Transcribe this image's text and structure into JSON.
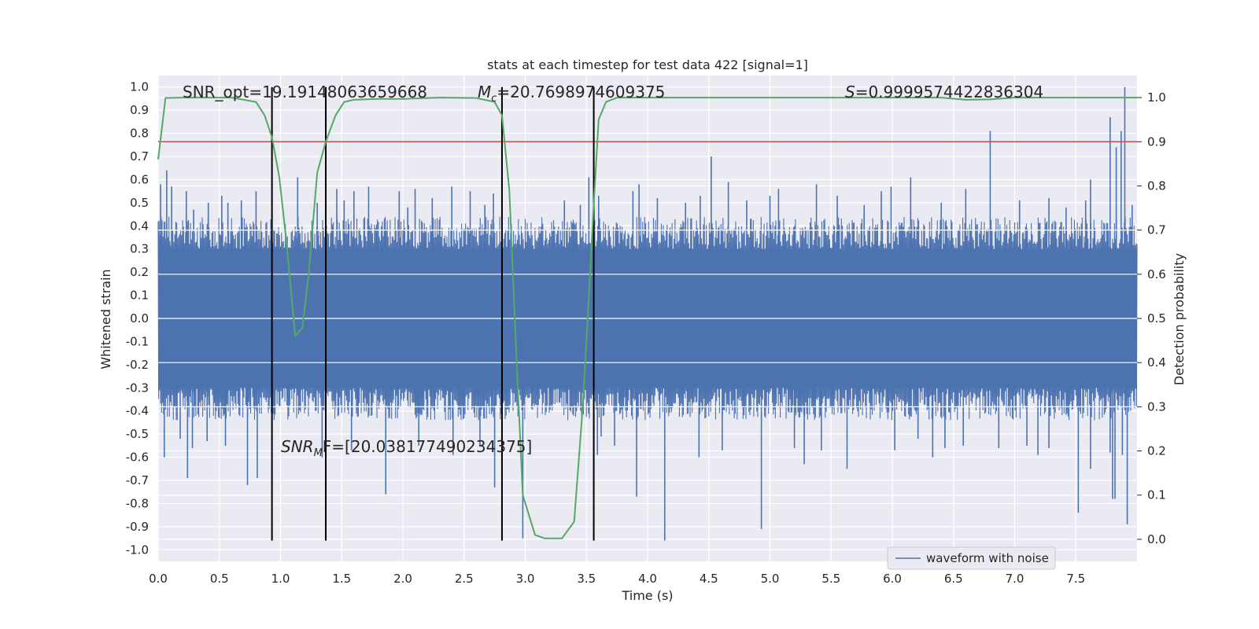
{
  "chart_data": {
    "type": "line",
    "title": "stats at each timestep for test data 422 [signal=1]",
    "xlabel": "Time (s)",
    "ylabel_left": "Whitened strain",
    "ylabel_right": "Detection probability",
    "xlim": [
      0.0,
      8.0
    ],
    "ylim_left": [
      -1.05,
      1.05
    ],
    "ylim_right": [
      -0.05,
      1.05
    ],
    "xticks": [
      "0.0",
      "0.5",
      "1.0",
      "1.5",
      "2.0",
      "2.5",
      "3.0",
      "3.5",
      "4.0",
      "4.5",
      "5.0",
      "5.5",
      "6.0",
      "6.5",
      "7.0",
      "7.5"
    ],
    "yticks_left": [
      "1.0",
      "0.9",
      "0.8",
      "0.7",
      "0.6",
      "0.5",
      "0.4",
      "0.3",
      "0.2",
      "0.1",
      "0.0",
      "-0.1",
      "-0.2",
      "-0.3",
      "-0.4",
      "-0.5",
      "-0.6",
      "-0.7",
      "-0.8",
      "-0.9",
      "-1.0"
    ],
    "yticks_right": [
      "1.0",
      "0.9",
      "0.8",
      "0.7",
      "0.6",
      "0.5",
      "0.4",
      "0.3",
      "0.2",
      "0.1",
      "0.0"
    ],
    "threshold": {
      "value_right": 0.9,
      "color": "#c44e52"
    },
    "vertical_lines": [
      0.93,
      1.37,
      2.81,
      3.56
    ],
    "vertical_line_range_left": [
      -0.96,
      1.0
    ],
    "waveform": {
      "name": "waveform with noise",
      "color": "#4c72b0",
      "sample_step": 0.004,
      "band_top": 0.3,
      "band_bottom": -0.3,
      "peaks": [
        [
          0.02,
          0.58
        ],
        [
          0.07,
          0.64
        ],
        [
          0.11,
          0.57
        ],
        [
          0.23,
          0.55
        ],
        [
          0.29,
          0.47
        ],
        [
          0.41,
          0.5
        ],
        [
          0.52,
          0.53
        ],
        [
          0.57,
          0.5
        ],
        [
          0.68,
          0.51
        ],
        [
          0.8,
          0.55
        ],
        [
          1.14,
          0.61
        ],
        [
          1.3,
          0.5
        ],
        [
          1.46,
          0.56
        ],
        [
          1.52,
          0.51
        ],
        [
          1.6,
          0.55
        ],
        [
          1.72,
          0.57
        ],
        [
          1.97,
          0.55
        ],
        [
          2.04,
          0.48
        ],
        [
          2.1,
          0.56
        ],
        [
          2.24,
          0.52
        ],
        [
          2.4,
          0.57
        ],
        [
          2.55,
          0.55
        ],
        [
          2.67,
          0.49
        ],
        [
          2.74,
          0.54
        ],
        [
          3.32,
          0.51
        ],
        [
          3.45,
          0.49
        ],
        [
          3.52,
          0.61
        ],
        [
          3.6,
          0.53
        ],
        [
          3.88,
          0.55
        ],
        [
          3.93,
          0.58
        ],
        [
          4.08,
          0.52
        ],
        [
          4.31,
          0.5
        ],
        [
          4.43,
          0.53
        ],
        [
          4.52,
          0.7
        ],
        [
          4.66,
          0.59
        ],
        [
          4.81,
          0.51
        ],
        [
          5.0,
          0.53
        ],
        [
          5.07,
          0.56
        ],
        [
          5.38,
          0.58
        ],
        [
          5.55,
          0.53
        ],
        [
          5.77,
          0.49
        ],
        [
          5.91,
          0.55
        ],
        [
          5.99,
          0.57
        ],
        [
          6.15,
          0.61
        ],
        [
          6.4,
          0.5
        ],
        [
          6.6,
          0.56
        ],
        [
          6.8,
          0.81
        ],
        [
          7.04,
          0.51
        ],
        [
          7.28,
          0.52
        ],
        [
          7.42,
          0.48
        ],
        [
          7.58,
          0.51
        ],
        [
          7.62,
          0.6
        ],
        [
          7.78,
          0.87
        ],
        [
          7.83,
          0.74
        ],
        [
          7.87,
          0.81
        ],
        [
          7.9,
          1.0
        ],
        [
          7.96,
          0.49
        ]
      ],
      "troughs": [
        [
          0.05,
          -0.6
        ],
        [
          0.18,
          -0.52
        ],
        [
          0.24,
          -0.69
        ],
        [
          0.28,
          -0.56
        ],
        [
          0.4,
          -0.53
        ],
        [
          0.55,
          -0.55
        ],
        [
          0.73,
          -0.72
        ],
        [
          0.81,
          -0.69
        ],
        [
          1.34,
          -0.6
        ],
        [
          1.58,
          -0.57
        ],
        [
          1.86,
          -0.76
        ],
        [
          2.13,
          -0.55
        ],
        [
          2.41,
          -0.59
        ],
        [
          2.63,
          -0.55
        ],
        [
          2.75,
          -0.73
        ],
        [
          2.98,
          -0.95
        ],
        [
          3.59,
          -0.59
        ],
        [
          3.62,
          -0.51
        ],
        [
          3.73,
          -0.55
        ],
        [
          3.91,
          -0.77
        ],
        [
          4.14,
          -0.96
        ],
        [
          4.42,
          -0.6
        ],
        [
          4.61,
          -0.57
        ],
        [
          4.93,
          -0.91
        ],
        [
          5.2,
          -0.56
        ],
        [
          5.28,
          -0.63
        ],
        [
          5.42,
          -0.57
        ],
        [
          5.63,
          -0.65
        ],
        [
          6.02,
          -0.57
        ],
        [
          6.21,
          -0.52
        ],
        [
          6.33,
          -0.6
        ],
        [
          6.43,
          -0.56
        ],
        [
          6.58,
          -0.55
        ],
        [
          6.87,
          -0.56
        ],
        [
          7.1,
          -0.55
        ],
        [
          7.19,
          -0.59
        ],
        [
          7.28,
          -0.56
        ],
        [
          7.52,
          -0.84
        ],
        [
          7.62,
          -0.65
        ],
        [
          7.78,
          -0.58
        ],
        [
          7.8,
          -0.78
        ],
        [
          7.82,
          -0.78
        ],
        [
          7.88,
          -0.59
        ],
        [
          7.92,
          -0.89
        ]
      ]
    },
    "detection_probability": {
      "color": "#55a868",
      "x": [
        0.0,
        0.06,
        0.2,
        0.4,
        0.6,
        0.8,
        0.87,
        0.93,
        0.99,
        1.05,
        1.12,
        1.18,
        1.23,
        1.3,
        1.37,
        1.45,
        1.52,
        1.6,
        1.8,
        2.0,
        2.3,
        2.6,
        2.75,
        2.81,
        2.87,
        2.93,
        2.98,
        3.08,
        3.16,
        3.3,
        3.4,
        3.47,
        3.52,
        3.56,
        3.6,
        3.66,
        3.75,
        4.0,
        4.5,
        5.0,
        5.5,
        6.0,
        6.4,
        6.6,
        6.8,
        7.0,
        7.2,
        7.5,
        7.8,
        8.0
      ],
      "y": [
        0.86,
        0.999,
        1.0,
        1.0,
        1.0,
        0.99,
        0.96,
        0.91,
        0.82,
        0.67,
        0.46,
        0.48,
        0.6,
        0.83,
        0.9,
        0.96,
        0.99,
        0.995,
        0.997,
        0.997,
        1.0,
        0.999,
        0.99,
        0.96,
        0.79,
        0.4,
        0.1,
        0.01,
        0.002,
        0.002,
        0.04,
        0.3,
        0.55,
        0.76,
        0.95,
        0.99,
        1.0,
        1.0,
        1.0,
        1.0,
        1.0,
        1.0,
        1.0,
        0.995,
        0.996,
        1.0,
        1.0,
        1.0,
        1.0,
        1.0
      ]
    },
    "legend": {
      "entries": [
        "waveform with noise"
      ],
      "placement": "lower-right"
    },
    "annotations": {
      "snr_opt": "SNR_opt=19.19148063659668",
      "mc_symbol": "M",
      "mc_sub": "c",
      "mc_value": "=20.7698974609375",
      "s_symbol": "S",
      "s_value": "=0.9999574422836304",
      "snrmf_symbol": "SNR",
      "snrmf_sub": "M",
      "snrmf_value": "F=[20.038177490234375]"
    },
    "grid": true
  }
}
